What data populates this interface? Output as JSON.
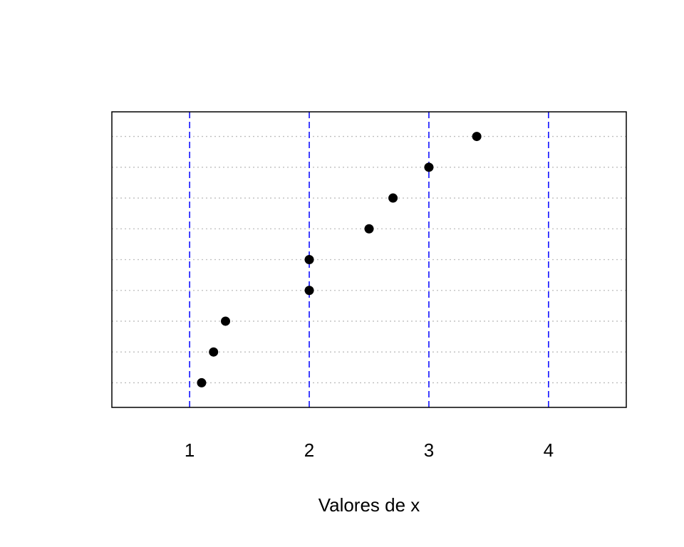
{
  "chart_data": {
    "type": "scatter",
    "title": "",
    "xlabel": "Valores de x",
    "ylabel": "",
    "xlim": [
      0.35,
      4.65
    ],
    "ylim": [
      0.2,
      9.8
    ],
    "x_ticks": [
      1,
      2,
      3,
      4
    ],
    "x_tick_labels": [
      "1",
      "2",
      "3",
      "4"
    ],
    "vertical_lines": {
      "x": [
        1,
        2,
        3,
        4
      ],
      "color": "#0000ff",
      "style": "dashed"
    },
    "horizontal_grid": {
      "y": [
        1,
        2,
        3,
        4,
        5,
        6,
        7,
        8,
        9
      ],
      "color": "#bebebe",
      "style": "dotted"
    },
    "point_color": "#000000",
    "series": [
      {
        "x": [
          1.1,
          1.2,
          1.3,
          2.0,
          2.0,
          2.5,
          2.7,
          3.0,
          3.4
        ],
        "y": [
          1,
          2,
          3,
          4,
          5,
          6,
          7,
          8,
          9
        ]
      }
    ]
  }
}
